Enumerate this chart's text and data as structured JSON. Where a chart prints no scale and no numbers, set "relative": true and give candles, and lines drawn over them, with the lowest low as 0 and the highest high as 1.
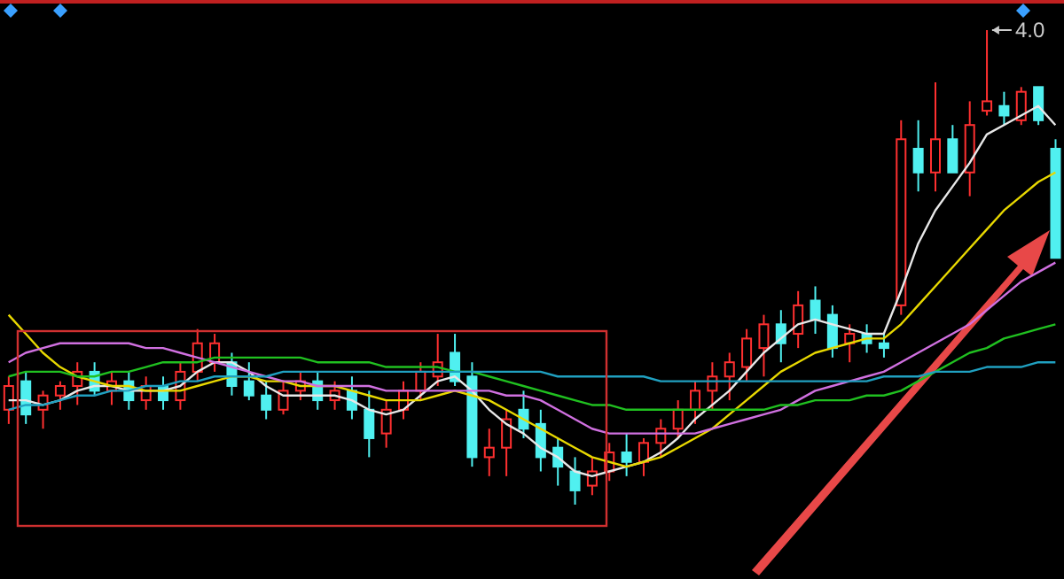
{
  "chart_data": {
    "type": "candlestick",
    "relative": true,
    "tick_labels": false,
    "categories": [
      null,
      null,
      null,
      null,
      null,
      null,
      null,
      null,
      null,
      null,
      null,
      null,
      null,
      null,
      null,
      null,
      null,
      null,
      null,
      null,
      null,
      null,
      null,
      null,
      null,
      null,
      null,
      null,
      null,
      null,
      null,
      null,
      null,
      null,
      null,
      null,
      null,
      null,
      null,
      null,
      null,
      null,
      null,
      null,
      null,
      null,
      null,
      null,
      null,
      null,
      null,
      null,
      null,
      null,
      null,
      null,
      null,
      null,
      null,
      null,
      null,
      null
    ],
    "ohlc": [
      [
        0.2,
        0.27,
        0.17,
        0.25
      ],
      [
        0.26,
        0.28,
        0.17,
        0.19
      ],
      [
        0.2,
        0.24,
        0.16,
        0.23
      ],
      [
        0.23,
        0.26,
        0.2,
        0.25
      ],
      [
        0.25,
        0.3,
        0.21,
        0.28
      ],
      [
        0.28,
        0.3,
        0.23,
        0.24
      ],
      [
        0.24,
        0.28,
        0.21,
        0.26
      ],
      [
        0.26,
        0.28,
        0.2,
        0.22
      ],
      [
        0.22,
        0.27,
        0.2,
        0.25
      ],
      [
        0.25,
        0.27,
        0.2,
        0.22
      ],
      [
        0.22,
        0.3,
        0.2,
        0.28
      ],
      [
        0.28,
        0.37,
        0.26,
        0.34
      ],
      [
        0.3,
        0.36,
        0.28,
        0.34
      ],
      [
        0.3,
        0.32,
        0.23,
        0.25
      ],
      [
        0.26,
        0.3,
        0.22,
        0.23
      ],
      [
        0.23,
        0.26,
        0.18,
        0.2
      ],
      [
        0.2,
        0.26,
        0.19,
        0.24
      ],
      [
        0.24,
        0.28,
        0.22,
        0.26
      ],
      [
        0.26,
        0.28,
        0.2,
        0.22
      ],
      [
        0.22,
        0.26,
        0.2,
        0.24
      ],
      [
        0.24,
        0.27,
        0.18,
        0.2
      ],
      [
        0.2,
        0.24,
        0.1,
        0.14
      ],
      [
        0.15,
        0.22,
        0.12,
        0.2
      ],
      [
        0.2,
        0.26,
        0.18,
        0.24
      ],
      [
        0.24,
        0.3,
        0.22,
        0.28
      ],
      [
        0.27,
        0.36,
        0.25,
        0.3
      ],
      [
        0.32,
        0.36,
        0.25,
        0.26
      ],
      [
        0.27,
        0.3,
        0.08,
        0.1
      ],
      [
        0.1,
        0.16,
        0.06,
        0.12
      ],
      [
        0.12,
        0.2,
        0.06,
        0.18
      ],
      [
        0.2,
        0.24,
        0.14,
        0.16
      ],
      [
        0.17,
        0.2,
        0.07,
        0.1
      ],
      [
        0.12,
        0.14,
        0.04,
        0.08
      ],
      [
        0.07,
        0.1,
        0.0,
        0.03
      ],
      [
        0.04,
        0.1,
        0.02,
        0.07
      ],
      [
        0.07,
        0.13,
        0.05,
        0.11
      ],
      [
        0.11,
        0.15,
        0.06,
        0.09
      ],
      [
        0.09,
        0.14,
        0.06,
        0.13
      ],
      [
        0.13,
        0.18,
        0.1,
        0.16
      ],
      [
        0.16,
        0.22,
        0.14,
        0.2
      ],
      [
        0.2,
        0.26,
        0.17,
        0.24
      ],
      [
        0.24,
        0.3,
        0.2,
        0.27
      ],
      [
        0.27,
        0.32,
        0.22,
        0.3
      ],
      [
        0.29,
        0.37,
        0.26,
        0.35
      ],
      [
        0.33,
        0.4,
        0.27,
        0.38
      ],
      [
        0.38,
        0.41,
        0.3,
        0.34
      ],
      [
        0.36,
        0.45,
        0.33,
        0.42
      ],
      [
        0.43,
        0.46,
        0.36,
        0.39
      ],
      [
        0.4,
        0.42,
        0.31,
        0.33
      ],
      [
        0.34,
        0.38,
        0.3,
        0.36
      ],
      [
        0.36,
        0.38,
        0.32,
        0.34
      ],
      [
        0.34,
        0.36,
        0.31,
        0.33
      ],
      [
        0.42,
        0.81,
        0.4,
        0.77
      ],
      [
        0.75,
        0.81,
        0.66,
        0.7
      ],
      [
        0.7,
        0.89,
        0.66,
        0.77
      ],
      [
        0.77,
        0.8,
        0.7,
        0.7
      ],
      [
        0.7,
        0.85,
        0.65,
        0.8
      ],
      [
        0.83,
        1.0,
        0.82,
        0.85
      ],
      [
        0.84,
        0.87,
        0.8,
        0.82
      ],
      [
        0.81,
        0.88,
        0.8,
        0.87
      ],
      [
        0.88,
        0.88,
        0.8,
        0.81
      ],
      [
        0.75,
        0.77,
        0.52,
        0.52
      ]
    ],
    "series": [
      {
        "type": "line",
        "color": "#e8e8e8",
        "values": [
          0.22,
          0.22,
          0.21,
          0.22,
          0.24,
          0.25,
          0.25,
          0.24,
          0.24,
          0.24,
          0.25,
          0.28,
          0.3,
          0.3,
          0.28,
          0.25,
          0.23,
          0.23,
          0.23,
          0.23,
          0.22,
          0.2,
          0.19,
          0.2,
          0.23,
          0.26,
          0.27,
          0.24,
          0.2,
          0.17,
          0.15,
          0.12,
          0.1,
          0.07,
          0.06,
          0.07,
          0.08,
          0.09,
          0.11,
          0.14,
          0.18,
          0.21,
          0.24,
          0.28,
          0.32,
          0.35,
          0.38,
          0.39,
          0.38,
          0.37,
          0.36,
          0.36,
          0.45,
          0.55,
          0.62,
          0.67,
          0.72,
          0.78,
          0.8,
          0.82,
          0.84,
          0.8
        ]
      },
      {
        "type": "line",
        "color": "#e8d800",
        "values": [
          0.4,
          0.36,
          0.32,
          0.29,
          0.27,
          0.26,
          0.25,
          0.25,
          0.24,
          0.24,
          0.24,
          0.25,
          0.26,
          0.27,
          0.27,
          0.26,
          0.26,
          0.25,
          0.25,
          0.25,
          0.24,
          0.23,
          0.22,
          0.22,
          0.22,
          0.23,
          0.24,
          0.23,
          0.22,
          0.2,
          0.18,
          0.16,
          0.14,
          0.12,
          0.1,
          0.09,
          0.08,
          0.09,
          0.1,
          0.12,
          0.14,
          0.16,
          0.19,
          0.22,
          0.25,
          0.28,
          0.3,
          0.32,
          0.33,
          0.34,
          0.35,
          0.35,
          0.38,
          0.42,
          0.46,
          0.5,
          0.54,
          0.58,
          0.62,
          0.65,
          0.68,
          0.7
        ]
      },
      {
        "type": "line",
        "color": "#d070e0",
        "values": [
          0.3,
          0.32,
          0.33,
          0.34,
          0.34,
          0.34,
          0.34,
          0.34,
          0.33,
          0.33,
          0.32,
          0.31,
          0.3,
          0.29,
          0.28,
          0.27,
          0.26,
          0.26,
          0.25,
          0.25,
          0.25,
          0.25,
          0.24,
          0.24,
          0.24,
          0.24,
          0.24,
          0.24,
          0.24,
          0.23,
          0.23,
          0.22,
          0.2,
          0.18,
          0.16,
          0.15,
          0.15,
          0.15,
          0.15,
          0.15,
          0.15,
          0.16,
          0.17,
          0.18,
          0.19,
          0.2,
          0.22,
          0.24,
          0.25,
          0.26,
          0.27,
          0.28,
          0.3,
          0.32,
          0.34,
          0.36,
          0.38,
          0.41,
          0.44,
          0.47,
          0.49,
          0.51
        ]
      },
      {
        "type": "line",
        "color": "#20c020",
        "values": [
          0.27,
          0.28,
          0.28,
          0.28,
          0.27,
          0.27,
          0.28,
          0.28,
          0.29,
          0.3,
          0.3,
          0.3,
          0.31,
          0.31,
          0.31,
          0.31,
          0.31,
          0.31,
          0.3,
          0.3,
          0.3,
          0.3,
          0.29,
          0.29,
          0.29,
          0.29,
          0.28,
          0.28,
          0.27,
          0.26,
          0.25,
          0.24,
          0.23,
          0.22,
          0.21,
          0.21,
          0.2,
          0.2,
          0.2,
          0.2,
          0.2,
          0.2,
          0.2,
          0.2,
          0.2,
          0.21,
          0.21,
          0.22,
          0.22,
          0.22,
          0.23,
          0.23,
          0.24,
          0.26,
          0.28,
          0.3,
          0.32,
          0.33,
          0.35,
          0.36,
          0.37,
          0.38
        ]
      },
      {
        "type": "line",
        "color": "#20a0c0",
        "values": [
          0.2,
          0.21,
          0.21,
          0.22,
          0.23,
          0.23,
          0.24,
          0.24,
          0.25,
          0.25,
          0.26,
          0.26,
          0.27,
          0.27,
          0.27,
          0.27,
          0.28,
          0.28,
          0.28,
          0.28,
          0.28,
          0.28,
          0.28,
          0.28,
          0.28,
          0.28,
          0.28,
          0.28,
          0.28,
          0.28,
          0.28,
          0.28,
          0.27,
          0.27,
          0.27,
          0.27,
          0.27,
          0.27,
          0.26,
          0.26,
          0.26,
          0.26,
          0.26,
          0.26,
          0.26,
          0.26,
          0.26,
          0.26,
          0.26,
          0.26,
          0.26,
          0.27,
          0.27,
          0.27,
          0.28,
          0.28,
          0.28,
          0.29,
          0.29,
          0.29,
          0.3,
          0.3
        ]
      }
    ],
    "annotations": [
      "4.0"
    ]
  }
}
